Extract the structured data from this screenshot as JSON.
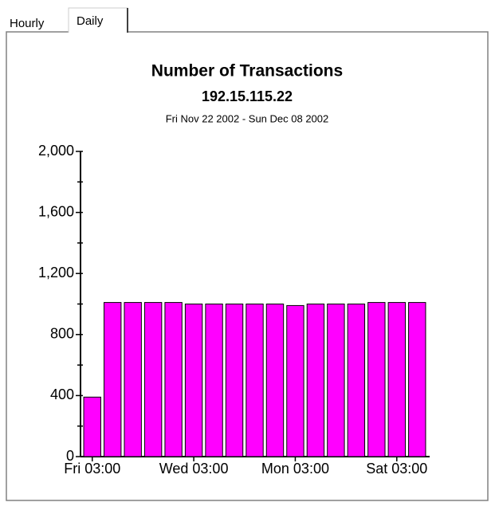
{
  "tabs": [
    "Hourly",
    "Daily"
  ],
  "chart_data": {
    "type": "bar",
    "title": "Number of Transactions",
    "subtitle": "192.15.115.22",
    "date_range": "Fri Nov 22 2002 - Sun Dec 08 2002",
    "categories": [
      "Fri 03:00",
      null,
      null,
      null,
      null,
      "Wed 03:00",
      null,
      null,
      null,
      null,
      "Mon 03:00",
      null,
      null,
      null,
      null,
      "Sat 03:00",
      null
    ],
    "values": [
      390,
      1010,
      1010,
      1010,
      1010,
      1000,
      1000,
      1000,
      1000,
      1000,
      990,
      1000,
      1000,
      1000,
      1010,
      1010,
      1010
    ],
    "color": "#ff00ff",
    "ylim": [
      0,
      2000
    ],
    "yticks": [
      0,
      400,
      800,
      {
        "value": 1200,
        "label": "1,200"
      },
      {
        "value": 1600,
        "label": "1,600"
      },
      {
        "value": 2000,
        "label": "2,000"
      }
    ],
    "minor_yticks": [
      200,
      600,
      1000,
      1400,
      1800
    ],
    "grid": false
  }
}
